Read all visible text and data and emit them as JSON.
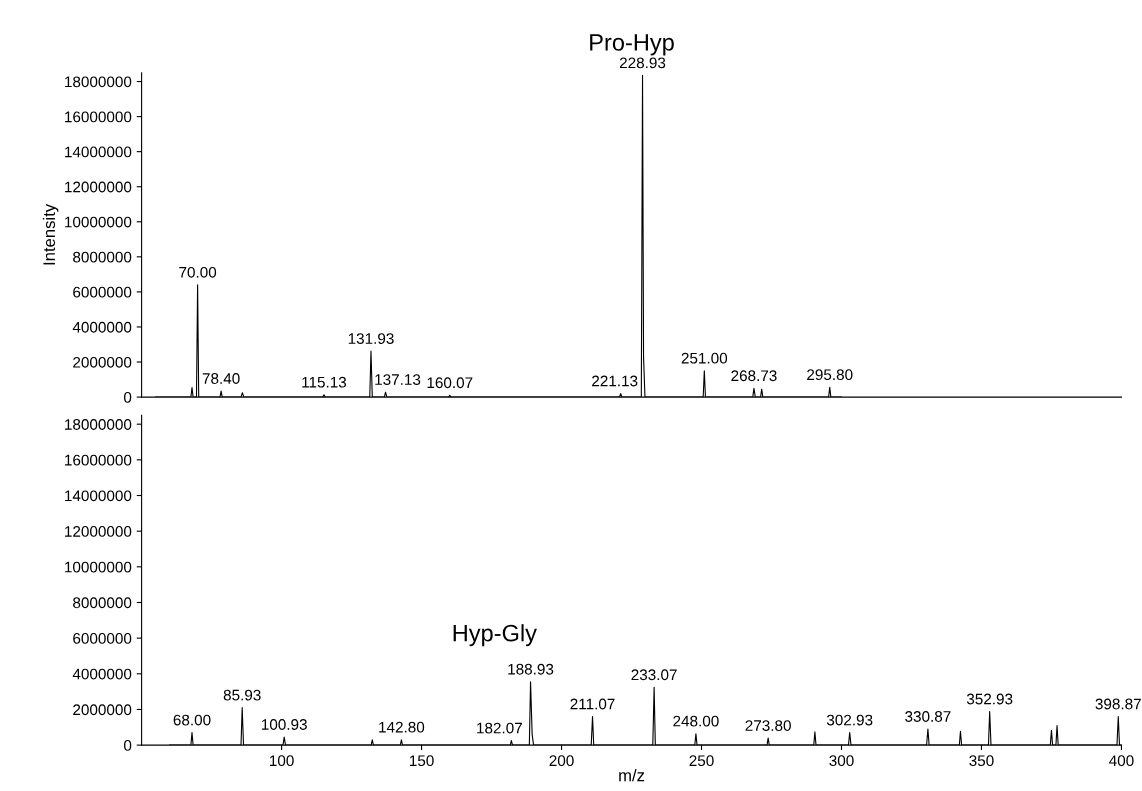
{
  "chart_data": [
    {
      "type": "line",
      "title": "Pro-Hyp",
      "ylabel": "Intensity",
      "xlim": [
        50,
        400
      ],
      "xticks": [
        100,
        150,
        200,
        250,
        300,
        350,
        400
      ],
      "ylim": [
        0,
        18500000
      ],
      "yticks": [
        0,
        2000000,
        4000000,
        6000000,
        8000000,
        10000000,
        12000000,
        14000000,
        16000000,
        18000000
      ],
      "tick_labels": "y",
      "grid": false,
      "legend": false,
      "series": [
        {
          "color": "#000000",
          "x": [
            55,
            67.6,
            68,
            68.4,
            69.6,
            70,
            70.4,
            78,
            78.4,
            78.8,
            85.5,
            86,
            86.5,
            114.7,
            115.13,
            115.6,
            131.5,
            131.93,
            132.4,
            136.7,
            137.13,
            137.6,
            159.6,
            160.07,
            160.5,
            220.7,
            221.13,
            221.6,
            228.5,
            228.93,
            229.3,
            229.8,
            250.6,
            251,
            251.4,
            268.3,
            268.73,
            269.2,
            271.1,
            271.5,
            271.9,
            295.4,
            295.8,
            296.2,
            300
          ],
          "values": [
            0,
            0,
            550000,
            0,
            0,
            6400000,
            0,
            0,
            340000,
            0,
            0,
            250000,
            0,
            0,
            130000,
            0,
            0,
            2620000,
            0,
            0,
            280000,
            0,
            0,
            100000,
            0,
            0,
            200000,
            0,
            0,
            18350000,
            2250000,
            0,
            0,
            1500000,
            0,
            0,
            500000,
            0,
            0,
            450000,
            0,
            0,
            560000,
            0,
            0
          ]
        }
      ],
      "annotations": [
        {
          "text": "70.00",
          "x": 70,
          "y": 6400000
        },
        {
          "text": "78.40",
          "x": 78.4,
          "y": 340000
        },
        {
          "text": "115.13",
          "x": 115.13,
          "y": 130000
        },
        {
          "text": "131.93",
          "x": 131.93,
          "y": 2620000
        },
        {
          "text": "137.13",
          "x": 137.13,
          "y": 280000
        },
        {
          "text": "160.07",
          "x": 160.07,
          "y": 100000
        },
        {
          "text": "221.13",
          "x": 221.13,
          "y": 200000
        },
        {
          "text": "228.93",
          "x": 228.93,
          "y": 18350000
        },
        {
          "text": "251.00",
          "x": 251,
          "y": 1500000
        },
        {
          "text": "268.73",
          "x": 268.73,
          "y": 500000
        },
        {
          "text": "295.80",
          "x": 295.8,
          "y": 560000
        }
      ]
    },
    {
      "type": "line",
      "title": "Hyp-Gly",
      "xlabel": "m/z",
      "xlim": [
        50,
        400
      ],
      "xticks": [
        100,
        150,
        200,
        250,
        300,
        350,
        400
      ],
      "ylim": [
        0,
        18500000
      ],
      "yticks": [
        0,
        2000000,
        4000000,
        6000000,
        8000000,
        10000000,
        12000000,
        14000000,
        16000000,
        18000000
      ],
      "grid": false,
      "legend": false,
      "series": [
        {
          "color": "#000000",
          "x": [
            60,
            67.6,
            68,
            68.4,
            85.5,
            85.93,
            86.4,
            100.5,
            100.93,
            101.4,
            132,
            132.4,
            132.8,
            142.4,
            142.8,
            143.2,
            181.7,
            182.07,
            182.5,
            188.5,
            188.93,
            189.5,
            190,
            210.6,
            211.07,
            211.5,
            232.6,
            233.07,
            233.5,
            247.6,
            248,
            248.4,
            273.4,
            273.8,
            274.2,
            290.1,
            290.5,
            290.9,
            302.5,
            302.93,
            303.4,
            330.4,
            330.87,
            331.3,
            342.1,
            342.5,
            342.9,
            352.5,
            352.93,
            353.4,
            374.6,
            375,
            375.4,
            376.6,
            377,
            377.4,
            398.4,
            398.87,
            399.3,
            400
          ],
          "values": [
            0,
            0,
            700000,
            0,
            0,
            2100000,
            0,
            0,
            450000,
            0,
            0,
            300000,
            0,
            0,
            300000,
            0,
            0,
            250000,
            0,
            0,
            3550000,
            600000,
            0,
            0,
            1600000,
            0,
            0,
            3240000,
            0,
            0,
            640000,
            0,
            0,
            390000,
            0,
            0,
            740000,
            0,
            0,
            700000,
            0,
            0,
            900000,
            0,
            0,
            780000,
            0,
            0,
            1880000,
            0,
            0,
            830000,
            0,
            0,
            1100000,
            0,
            0,
            1600000,
            0,
            0
          ]
        }
      ],
      "annotations": [
        {
          "text": "68.00",
          "x": 68,
          "y": 700000
        },
        {
          "text": "85.93",
          "x": 85.93,
          "y": 2100000
        },
        {
          "text": "100.93",
          "x": 100.93,
          "y": 450000
        },
        {
          "text": "142.80",
          "x": 142.8,
          "y": 300000
        },
        {
          "text": "182.07",
          "x": 182.07,
          "y": 250000
        },
        {
          "text": "188.93",
          "x": 188.93,
          "y": 3550000
        },
        {
          "text": "211.07",
          "x": 211.07,
          "y": 1600000
        },
        {
          "text": "233.07",
          "x": 233.07,
          "y": 3240000
        },
        {
          "text": "248.00",
          "x": 248,
          "y": 640000
        },
        {
          "text": "273.80",
          "x": 273.8,
          "y": 390000
        },
        {
          "text": "302.93",
          "x": 302.93,
          "y": 700000
        },
        {
          "text": "330.87",
          "x": 330.87,
          "y": 900000
        },
        {
          "text": "352.93",
          "x": 352.93,
          "y": 1880000
        },
        {
          "text": "398.87",
          "x": 398.87,
          "y": 1600000
        }
      ]
    }
  ]
}
